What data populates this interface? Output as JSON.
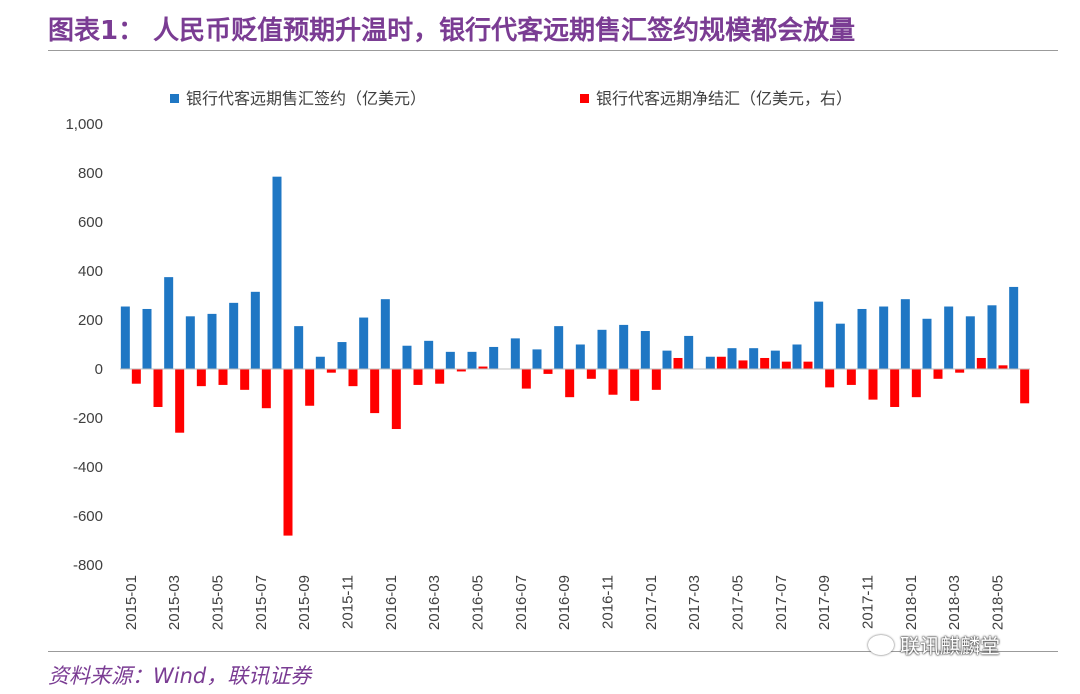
{
  "header": {
    "title": "图表1：  人民币贬值预期升温时，银行代客远期售汇签约规模都会放量"
  },
  "footer": {
    "source": "资料来源：Wind，联讯证券",
    "watermark": "联讯麒麟堂"
  },
  "colors": {
    "series1": "#1f77c4",
    "series2": "#ff0000",
    "title": "#7a3c93"
  },
  "chart_data": {
    "type": "bar",
    "title": "",
    "ylim": [
      -800,
      1000
    ],
    "yticks": [
      1000,
      800,
      600,
      400,
      200,
      0,
      -200,
      -400,
      -600,
      -800
    ],
    "ytick_labels": [
      "1,000",
      "800",
      "600",
      "400",
      "200",
      "0",
      "-200",
      "-400",
      "-600",
      "-800"
    ],
    "categories": [
      "2015-01",
      "2015-02",
      "2015-03",
      "2015-04",
      "2015-05",
      "2015-06",
      "2015-07",
      "2015-08",
      "2015-09",
      "2015-10",
      "2015-11",
      "2015-12",
      "2016-01",
      "2016-02",
      "2016-03",
      "2016-04",
      "2016-05",
      "2016-06",
      "2016-07",
      "2016-08",
      "2016-09",
      "2016-10",
      "2016-11",
      "2016-12",
      "2017-01",
      "2017-02",
      "2017-03",
      "2017-04",
      "2017-05",
      "2017-06",
      "2017-07",
      "2017-08",
      "2017-09",
      "2017-10",
      "2017-11",
      "2017-12",
      "2018-01",
      "2018-02",
      "2018-03",
      "2018-04",
      "2018-05",
      "2018-06"
    ],
    "xtick_labels": [
      "2015-01",
      "2015-03",
      "2015-05",
      "2015-07",
      "2015-09",
      "2015-11",
      "2016-01",
      "2016-03",
      "2016-05",
      "2016-07",
      "2016-09",
      "2016-11",
      "2017-01",
      "2017-03",
      "2017-05",
      "2017-07",
      "2017-09",
      "2017-11",
      "2018-01",
      "2018-03",
      "2018-05"
    ],
    "series": [
      {
        "name": "银行代客远期售汇签约（亿美元）",
        "values": [
          255,
          245,
          375,
          215,
          225,
          270,
          315,
          785,
          175,
          50,
          110,
          210,
          285,
          95,
          115,
          70,
          70,
          90,
          125,
          80,
          175,
          100,
          160,
          180,
          155,
          75,
          135,
          50,
          85,
          85,
          75,
          100,
          275,
          185,
          245,
          255,
          285,
          205,
          255,
          215,
          260,
          335
        ]
      },
      {
        "name": "银行代客远期净结汇（亿美元，右）",
        "values": [
          -60,
          -155,
          -260,
          -70,
          -65,
          -85,
          -160,
          -680,
          -150,
          -15,
          -70,
          -180,
          -245,
          -65,
          -60,
          -10,
          10,
          0,
          -80,
          -20,
          -115,
          -40,
          -105,
          -130,
          -85,
          45,
          0,
          50,
          35,
          45,
          30,
          30,
          -75,
          -65,
          -125,
          -155,
          -115,
          -40,
          -15,
          45,
          15,
          -140
        ]
      }
    ]
  }
}
